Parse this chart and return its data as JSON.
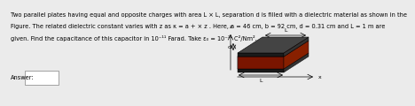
{
  "text_line1": "Two parallel plates having equal and opposite charges with area L × L, separation d is filled with a dielectric material as shown in the",
  "text_line2": "Figure. The related dielectric constant varies with z as κ = a + × z . Here, a = 46 cm, b = 92 cm, d = 0.31 cm and L = 1 m are",
  "text_line3": "given. Find the capacitance of this capacitor in 10⁻¹¹ Farad. Take ε₀ = 10⁻¹¹ C²/Nm².",
  "answer_label": "Answer:",
  "bg_color": "#ebebeb",
  "red_color": "#c83010",
  "dark_color": "#1a1a1a",
  "side_color": "#8b1a00",
  "front_color": "#7a1500",
  "font_size": 4.8,
  "label_font_size": 4.5
}
